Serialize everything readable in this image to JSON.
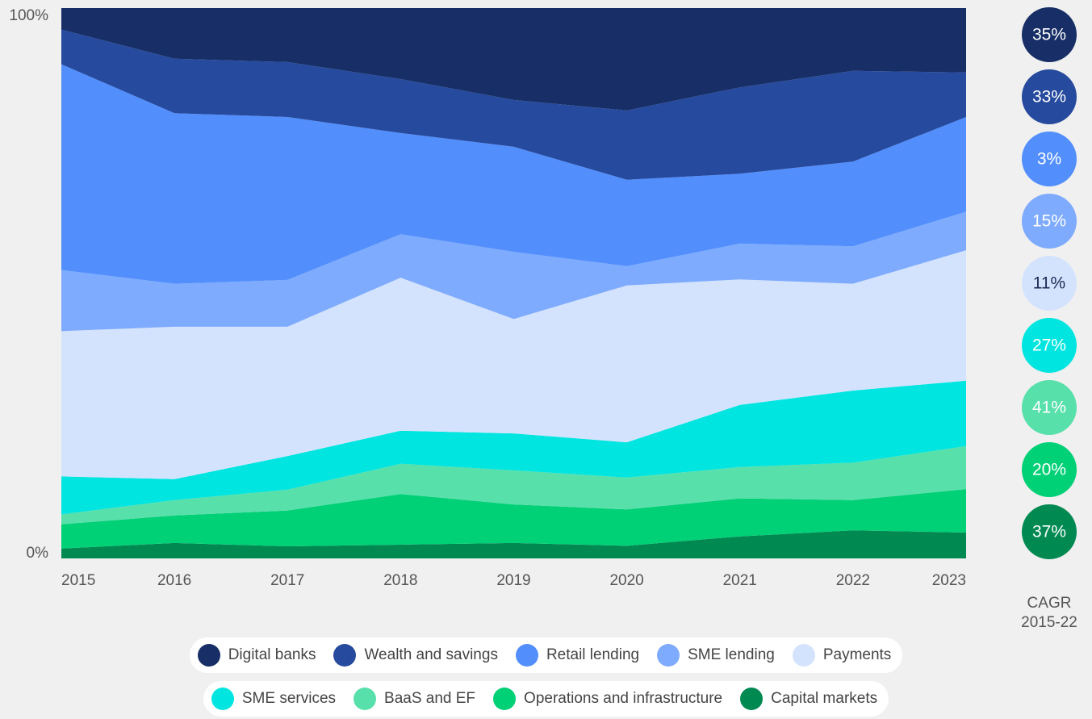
{
  "chart_data": {
    "type": "stacked_area_percent",
    "categories": [
      "2015",
      "2016",
      "2017",
      "2018",
      "2019",
      "2020",
      "2021",
      "2022",
      "2023"
    ],
    "ylim": [
      0,
      100
    ],
    "yticks": [
      {
        "value": 0,
        "label": "0%"
      },
      {
        "value": 100,
        "label": "100%"
      }
    ],
    "series": [
      {
        "name": "Digital banks",
        "color": "#172e66",
        "values": [
          3.9,
          9.2,
          9.8,
          12.9,
          16.7,
          18.6,
          14.4,
          11.4,
          11.7
        ]
      },
      {
        "name": "Wealth and savings",
        "color": "#264a9d",
        "values": [
          6.3,
          9.9,
          10.0,
          9.8,
          8.5,
          12.6,
          15.7,
          16.5,
          8.1
        ]
      },
      {
        "name": "Retail lending",
        "color": "#528ffd",
        "values": [
          37.4,
          31.0,
          29.6,
          18.4,
          19.1,
          15.7,
          12.7,
          15.4,
          17.2
        ]
      },
      {
        "name": "SME lending",
        "color": "#7eabfd",
        "values": [
          11.1,
          7.8,
          8.5,
          7.9,
          12.2,
          3.5,
          6.5,
          6.8,
          7.0
        ]
      },
      {
        "name": "Payments",
        "color": "#d4e3fd",
        "values": [
          26.4,
          27.7,
          23.5,
          27.8,
          20.8,
          28.5,
          22.8,
          19.4,
          23.7
        ]
      },
      {
        "name": "SME services",
        "color": "#00e5e0",
        "values": [
          6.9,
          3.8,
          6.1,
          6.0,
          6.7,
          6.4,
          11.3,
          13.1,
          11.9
        ]
      },
      {
        "name": "BaaS and EF",
        "color": "#58e0ab",
        "values": [
          1.8,
          2.8,
          3.8,
          5.5,
          6.2,
          5.8,
          5.7,
          6.8,
          7.8
        ]
      },
      {
        "name": "Operations and infrastructure",
        "color": "#00d076",
        "values": [
          4.4,
          5.0,
          6.5,
          9.2,
          7.0,
          6.6,
          6.9,
          5.5,
          7.9
        ]
      },
      {
        "name": "Capital markets",
        "color": "#008a52",
        "values": [
          1.8,
          2.8,
          2.2,
          2.5,
          2.8,
          2.3,
          4.0,
          5.1,
          4.7
        ]
      }
    ],
    "cagr": {
      "title": [
        "CAGR",
        "2015-22"
      ],
      "values": [
        35,
        33,
        3,
        15,
        11,
        27,
        41,
        20,
        37
      ],
      "value_labels": [
        "35%",
        "33%",
        "3%",
        "15%",
        "11%",
        "27%",
        "41%",
        "20%",
        "37%"
      ]
    },
    "legend_rows": [
      5,
      4
    ]
  }
}
